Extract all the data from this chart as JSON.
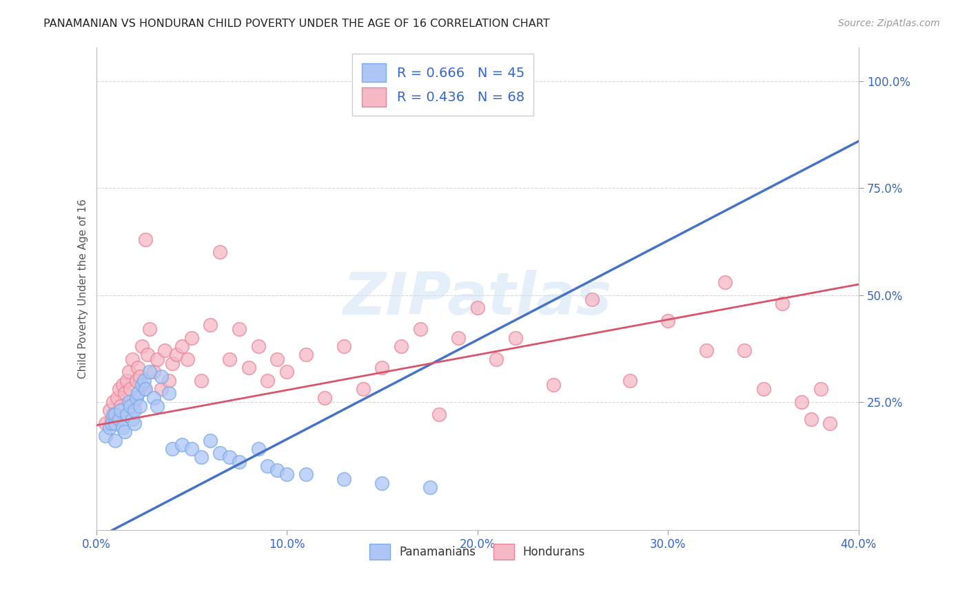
{
  "title": "PANAMANIAN VS HONDURAN CHILD POVERTY UNDER THE AGE OF 16 CORRELATION CHART",
  "source": "Source: ZipAtlas.com",
  "ylabel": "Child Poverty Under the Age of 16",
  "xlim": [
    0.0,
    0.4
  ],
  "ylim": [
    -0.05,
    1.08
  ],
  "xticks": [
    0.0,
    0.1,
    0.2,
    0.3,
    0.4
  ],
  "xtick_labels": [
    "0.0%",
    "10.0%",
    "20.0%",
    "30.0%",
    "40.0%"
  ],
  "yticks": [
    0.25,
    0.5,
    0.75,
    1.0
  ],
  "ytick_labels": [
    "25.0%",
    "50.0%",
    "75.0%",
    "100.0%"
  ],
  "background_color": "#ffffff",
  "grid_color": "#cccccc",
  "blue_dot_face": "#adc6f5",
  "blue_dot_edge": "#7aaae8",
  "pink_dot_face": "#f5b8c4",
  "pink_dot_edge": "#e8849a",
  "blue_line_color": "#4472c4",
  "pink_line_color": "#d9546a",
  "R_blue": 0.666,
  "N_blue": 45,
  "R_pink": 0.436,
  "N_pink": 68,
  "legend_label_blue": "Panamanians",
  "legend_label_pink": "Hondurans",
  "watermark": "ZIPatlas",
  "blue_line_x0": 0.0,
  "blue_line_y0": -0.07,
  "blue_line_x1": 0.4,
  "blue_line_y1": 0.86,
  "pink_line_x0": 0.0,
  "pink_line_y0": 0.195,
  "pink_line_x1": 0.4,
  "pink_line_y1": 0.525,
  "blue_scatter_x": [
    0.005,
    0.007,
    0.008,
    0.009,
    0.01,
    0.01,
    0.01,
    0.012,
    0.013,
    0.014,
    0.015,
    0.016,
    0.017,
    0.018,
    0.019,
    0.02,
    0.02,
    0.021,
    0.022,
    0.023,
    0.024,
    0.025,
    0.026,
    0.028,
    0.03,
    0.032,
    0.034,
    0.038,
    0.04,
    0.045,
    0.05,
    0.055,
    0.06,
    0.065,
    0.07,
    0.075,
    0.085,
    0.09,
    0.095,
    0.1,
    0.11,
    0.13,
    0.15,
    0.175,
    0.195
  ],
  "blue_scatter_y": [
    0.17,
    0.19,
    0.2,
    0.22,
    0.16,
    0.2,
    0.22,
    0.21,
    0.23,
    0.19,
    0.18,
    0.22,
    0.25,
    0.24,
    0.21,
    0.2,
    0.23,
    0.26,
    0.27,
    0.24,
    0.29,
    0.3,
    0.28,
    0.32,
    0.26,
    0.24,
    0.31,
    0.27,
    0.14,
    0.15,
    0.14,
    0.12,
    0.16,
    0.13,
    0.12,
    0.11,
    0.14,
    0.1,
    0.09,
    0.08,
    0.08,
    0.07,
    0.06,
    0.05,
    0.95
  ],
  "pink_scatter_x": [
    0.005,
    0.007,
    0.008,
    0.009,
    0.01,
    0.011,
    0.012,
    0.013,
    0.014,
    0.015,
    0.016,
    0.017,
    0.018,
    0.019,
    0.02,
    0.021,
    0.022,
    0.023,
    0.024,
    0.025,
    0.026,
    0.027,
    0.028,
    0.03,
    0.032,
    0.034,
    0.036,
    0.038,
    0.04,
    0.042,
    0.045,
    0.048,
    0.05,
    0.055,
    0.06,
    0.065,
    0.07,
    0.075,
    0.08,
    0.085,
    0.09,
    0.095,
    0.1,
    0.11,
    0.12,
    0.13,
    0.14,
    0.15,
    0.16,
    0.17,
    0.18,
    0.19,
    0.2,
    0.21,
    0.22,
    0.24,
    0.26,
    0.28,
    0.3,
    0.32,
    0.33,
    0.34,
    0.35,
    0.36,
    0.37,
    0.375,
    0.38,
    0.385
  ],
  "pink_scatter_y": [
    0.2,
    0.23,
    0.21,
    0.25,
    0.22,
    0.26,
    0.28,
    0.24,
    0.29,
    0.27,
    0.3,
    0.32,
    0.28,
    0.35,
    0.25,
    0.3,
    0.33,
    0.31,
    0.38,
    0.28,
    0.63,
    0.36,
    0.42,
    0.32,
    0.35,
    0.28,
    0.37,
    0.3,
    0.34,
    0.36,
    0.38,
    0.35,
    0.4,
    0.3,
    0.43,
    0.6,
    0.35,
    0.42,
    0.33,
    0.38,
    0.3,
    0.35,
    0.32,
    0.36,
    0.26,
    0.38,
    0.28,
    0.33,
    0.38,
    0.42,
    0.22,
    0.4,
    0.47,
    0.35,
    0.4,
    0.29,
    0.49,
    0.3,
    0.44,
    0.37,
    0.53,
    0.37,
    0.28,
    0.48,
    0.25,
    0.21,
    0.28,
    0.2
  ]
}
